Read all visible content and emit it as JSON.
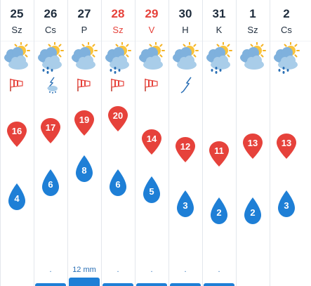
{
  "days": [
    {
      "date": "25",
      "dow": "Sz",
      "weekend": false,
      "icon": "cloud-sun-icon",
      "wind_icon": "windsock-icon",
      "max": "16",
      "min": "4",
      "precip": "",
      "precip_mm": 0
    },
    {
      "date": "26",
      "dow": "Cs",
      "weekend": false,
      "icon": "sun-cloud-rain-icon",
      "wind_icon": "lightning-rain-icon",
      "max": "17",
      "min": "6",
      "precip": ".",
      "precip_mm": 0
    },
    {
      "date": "27",
      "dow": "P",
      "weekend": false,
      "icon": "cloud-sun-icon",
      "wind_icon": "windsock-icon",
      "max": "19",
      "min": "8",
      "precip": "12 mm",
      "precip_mm": 12
    },
    {
      "date": "28",
      "dow": "Sz",
      "weekend": true,
      "icon": "sun-cloud-rain-icon",
      "wind_icon": "windsock-icon",
      "max": "20",
      "min": "6",
      "precip": ".",
      "precip_mm": 0
    },
    {
      "date": "29",
      "dow": "V",
      "weekend": true,
      "icon": "sun-cloud-icon",
      "wind_icon": "windsock-icon",
      "max": "14",
      "min": "5",
      "precip": ".",
      "precip_mm": 0
    },
    {
      "date": "30",
      "dow": "H",
      "weekend": false,
      "icon": "sun-cloud-icon",
      "wind_icon": "lightning-icon",
      "max": "12",
      "min": "3",
      "precip": ".",
      "precip_mm": 0
    },
    {
      "date": "31",
      "dow": "K",
      "weekend": false,
      "icon": "sun-cloud-rain-icon",
      "wind_icon": "",
      "max": "11",
      "min": "2",
      "precip": ".",
      "precip_mm": 0
    },
    {
      "date": "1",
      "dow": "Sz",
      "weekend": false,
      "icon": "sun-cloud-icon",
      "wind_icon": "",
      "max": "13",
      "min": "2",
      "precip": "",
      "precip_mm": 0
    },
    {
      "date": "2",
      "dow": "Cs",
      "weekend": false,
      "icon": "sun-cloud-rain-icon",
      "wind_icon": "",
      "max": "13",
      "min": "3",
      "precip": "",
      "precip_mm": 0
    }
  ],
  "colors": {
    "max_pin": "#e6423b",
    "min_drop": "#1e7fd6",
    "weekend_text": "#e6423b",
    "text": "#1f2d3d",
    "precip_bar": "#1e7fd6"
  }
}
